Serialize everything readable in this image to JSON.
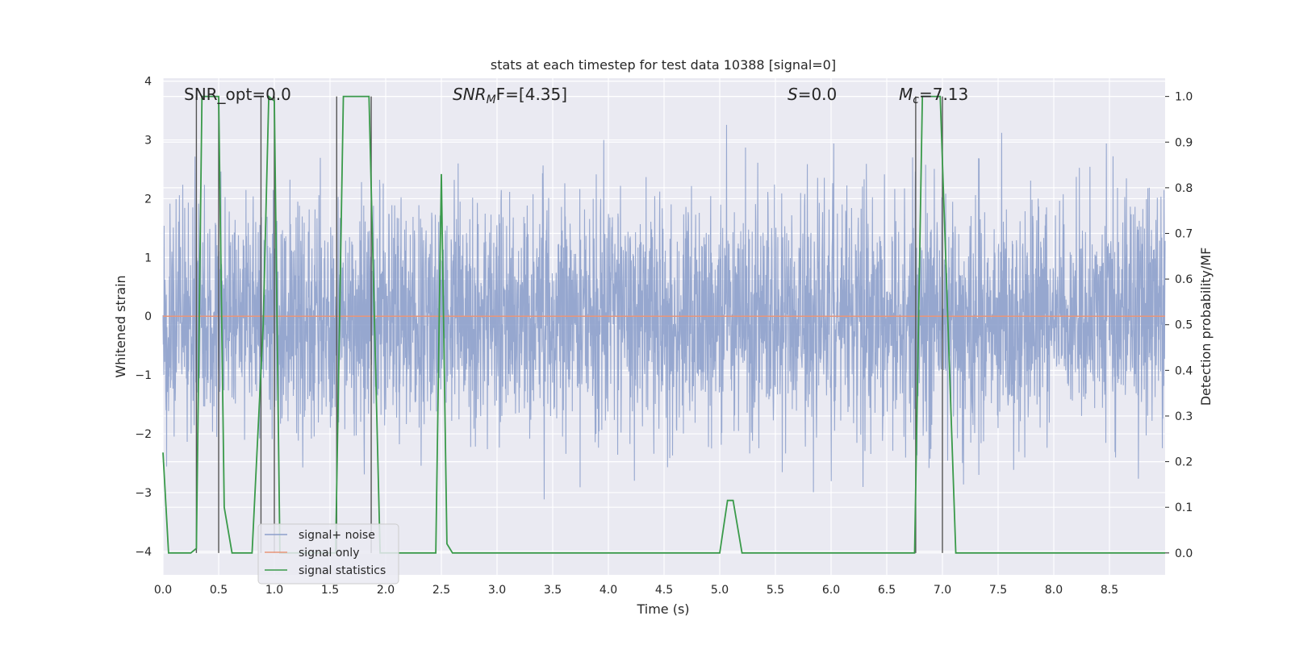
{
  "chart_data": {
    "type": "line",
    "title": "stats at each timestep for test data 10388 [signal=0]",
    "xlabel": "Time (s)",
    "ylabel": "Whitened strain",
    "y2label": "Detection probability/MF",
    "xlim": [
      0.0,
      9.0
    ],
    "ylim": [
      -4.4,
      4.05
    ],
    "y2lim": [
      -0.048,
      1.04
    ],
    "xticks": [
      "0.0",
      "0.5",
      "1.0",
      "1.5",
      "2.0",
      "2.5",
      "3.0",
      "3.5",
      "4.0",
      "4.5",
      "5.0",
      "5.5",
      "6.0",
      "6.5",
      "7.0",
      "7.5",
      "8.0",
      "8.5"
    ],
    "yticks": [
      "4",
      "3",
      "2",
      "1",
      "0",
      "−1",
      "−2",
      "−3",
      "−4"
    ],
    "y2ticks": [
      "1.0",
      "0.9",
      "0.8",
      "0.7",
      "0.6",
      "0.5",
      "0.4",
      "0.3",
      "0.2",
      "0.1",
      "0.0"
    ],
    "legend_position": "bottom-left",
    "annotations": {
      "snr_opt": "SNR_opt=0.0",
      "snr_mf_prefix": "SNR",
      "snr_mf_sub": "M",
      "snr_mf_suffix": "F=[4.35]",
      "s_var": "S",
      "s_value": "=0.0",
      "mc_var": "M",
      "mc_sub": "c",
      "mc_value": "=7.13"
    },
    "series": [
      {
        "name": "signal+ noise",
        "color": "#8da0cb",
        "description": "whitened noisy strain, amplitude roughly between -3.5 and 3.5"
      },
      {
        "name": "signal only",
        "color": "#e8967a",
        "values_constant": 0
      },
      {
        "name": "signal statistics",
        "color": "#3a9a4a",
        "axis": "right",
        "points": [
          [
            0.0,
            0.22
          ],
          [
            0.05,
            0.0
          ],
          [
            0.25,
            0.0
          ],
          [
            0.3,
            0.01
          ],
          [
            0.35,
            1.0
          ],
          [
            0.5,
            1.0
          ],
          [
            0.55,
            0.1
          ],
          [
            0.62,
            0.0
          ],
          [
            0.8,
            0.0
          ],
          [
            0.9,
            0.5
          ],
          [
            0.95,
            1.0
          ],
          [
            1.0,
            0.99
          ],
          [
            1.05,
            0.0
          ],
          [
            1.55,
            0.0
          ],
          [
            1.62,
            1.0
          ],
          [
            1.85,
            1.0
          ],
          [
            1.95,
            0.0
          ],
          [
            2.45,
            0.0
          ],
          [
            2.5,
            0.83
          ],
          [
            2.55,
            0.02
          ],
          [
            2.6,
            0.0
          ],
          [
            2.75,
            0.0
          ],
          [
            3.0,
            0.0
          ],
          [
            4.3,
            0.0
          ],
          [
            5.0,
            0.0
          ],
          [
            5.07,
            0.115
          ],
          [
            5.12,
            0.115
          ],
          [
            5.2,
            0.0
          ],
          [
            6.75,
            0.0
          ],
          [
            6.82,
            1.0
          ],
          [
            6.98,
            1.0
          ],
          [
            7.12,
            0.0
          ],
          [
            9.0,
            0.0
          ]
        ]
      }
    ],
    "vertical_markers": [
      {
        "x": 0.3,
        "top": 1.0
      },
      {
        "x": 0.5,
        "top": 1.0
      },
      {
        "x": 0.88,
        "top": 1.0
      },
      {
        "x": 1.0,
        "top": 1.0
      },
      {
        "x": 1.56,
        "top": 1.0
      },
      {
        "x": 1.87,
        "top": 1.0
      },
      {
        "x": 6.76,
        "top": 1.0
      },
      {
        "x": 7.0,
        "top": 1.0
      }
    ]
  },
  "colors": {
    "plot_bg": "#eaeaf2",
    "grid": "#ffffff",
    "noise": "#8da0cb",
    "signal": "#e8967a",
    "stats": "#3a9a4a",
    "marker": "#555555"
  }
}
